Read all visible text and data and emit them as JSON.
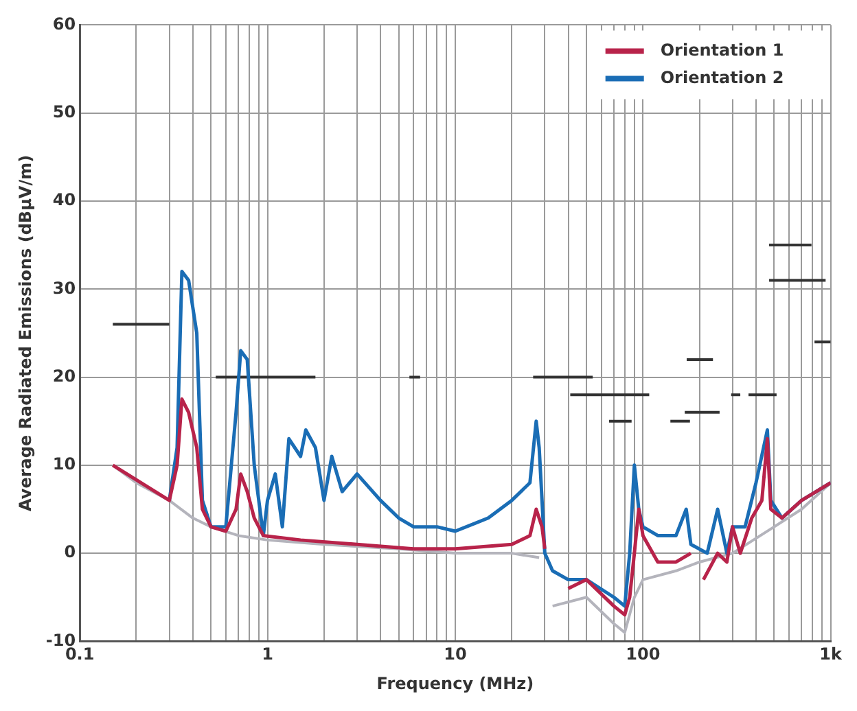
{
  "chart_data": {
    "type": "line",
    "xlabel": "Frequency (MHz)",
    "ylabel": "Average Radiated Emissions (dBµV/m)",
    "log": "x",
    "grid": true,
    "legend": "top right",
    "marker": "none",
    "line_style": "solid",
    "xlim": [
      0.1,
      1000
    ],
    "xticks": [
      0.1,
      {
        "value": 0.2,
        "label": null
      },
      {
        "value": 0.3,
        "label": null
      },
      {
        "value": 0.4,
        "label": null
      },
      {
        "value": 0.5,
        "label": null
      },
      {
        "value": 0.6,
        "label": null
      },
      {
        "value": 0.7,
        "label": null
      },
      {
        "value": 0.8,
        "label": null
      },
      {
        "value": 0.9,
        "label": null
      },
      1,
      {
        "value": 2,
        "label": null
      },
      {
        "value": 3,
        "label": null
      },
      {
        "value": 4,
        "label": null
      },
      {
        "value": 5,
        "label": null
      },
      {
        "value": 6,
        "label": null
      },
      {
        "value": 7,
        "label": null
      },
      {
        "value": 8,
        "label": null
      },
      {
        "value": 9,
        "label": null
      },
      10,
      {
        "value": 20,
        "label": null
      },
      {
        "value": 30,
        "label": null
      },
      {
        "value": 40,
        "label": null
      },
      {
        "value": 50,
        "label": null
      },
      {
        "value": 60,
        "label": null
      },
      {
        "value": 70,
        "label": null
      },
      {
        "value": 80,
        "label": null
      },
      {
        "value": 90,
        "label": null
      },
      100,
      {
        "value": 200,
        "label": null
      },
      {
        "value": 300,
        "label": null
      },
      {
        "value": 400,
        "label": null
      },
      {
        "value": 500,
        "label": null
      },
      {
        "value": 600,
        "label": null
      },
      {
        "value": 700,
        "label": null
      },
      {
        "value": 800,
        "label": null
      },
      {
        "value": 900,
        "label": null
      },
      {
        "value": 1000,
        "label": "1k"
      }
    ],
    "ylim": [
      -10,
      60
    ],
    "yticks": [
      -10,
      0,
      10,
      20,
      30,
      40,
      50,
      60
    ],
    "series": [
      {
        "name": "Orientation 1",
        "color": "#b8234a",
        "x": [
          0.15,
          0.3,
          0.33,
          0.35,
          0.38,
          0.42,
          0.45,
          0.5,
          0.6,
          0.68,
          0.72,
          0.78,
          0.85,
          0.95,
          1.5,
          3,
          6,
          10,
          20,
          25,
          27,
          29,
          30,
          33,
          40,
          50,
          70,
          80,
          85,
          90,
          95,
          100,
          120,
          150,
          180,
          200,
          210,
          250,
          280,
          300,
          330,
          380,
          430,
          460,
          480,
          550,
          700,
          1000
        ],
        "values": [
          10,
          6,
          10,
          17.5,
          16,
          12,
          5,
          3,
          2.5,
          5,
          9,
          7,
          4,
          2,
          1.5,
          1,
          0.5,
          0.5,
          1,
          2,
          5,
          3,
          0.5,
          null,
          -4,
          -3,
          -6,
          -7,
          -5,
          0,
          5,
          2,
          -1,
          -1,
          0,
          null,
          -3,
          0,
          -1,
          3,
          0,
          4,
          6,
          13,
          5,
          4,
          6,
          8
        ]
      },
      {
        "name": "Orientation 2",
        "color": "#1a6db5",
        "x": [
          0.3,
          0.33,
          0.35,
          0.38,
          0.42,
          0.45,
          0.5,
          0.6,
          0.68,
          0.72,
          0.78,
          0.85,
          0.95,
          1,
          1.1,
          1.2,
          1.3,
          1.5,
          1.6,
          1.8,
          2,
          2.2,
          2.5,
          3,
          4,
          5,
          6,
          8,
          10,
          15,
          20,
          25,
          27,
          28,
          29,
          30,
          33,
          40,
          50,
          70,
          80,
          85,
          90,
          95,
          100,
          120,
          150,
          170,
          180,
          220,
          250,
          280,
          300,
          350,
          400,
          460,
          480,
          550,
          700,
          1000
        ],
        "values": [
          6,
          12,
          32,
          31,
          25,
          6,
          3,
          3,
          16,
          23,
          22,
          10,
          2,
          6,
          9,
          3,
          13,
          11,
          14,
          12,
          6,
          11,
          7,
          9,
          6,
          4,
          3,
          3,
          2.5,
          4,
          6,
          8,
          15,
          12,
          6,
          0,
          -2,
          -3,
          -3,
          -5,
          -6,
          0,
          10,
          5,
          3,
          2,
          2,
          5,
          1,
          0,
          5,
          0,
          3,
          3,
          8,
          14,
          6,
          4,
          6,
          8
        ]
      },
      {
        "color": "#b4b4bc",
        "x": [
          0.15,
          0.2,
          0.3,
          0.4,
          0.5,
          0.7,
          1,
          2,
          5,
          10,
          20,
          28,
          30,
          33,
          50,
          70,
          80,
          90,
          100,
          150,
          200,
          300,
          500,
          700,
          1000
        ],
        "values": [
          10,
          8,
          6,
          4,
          3,
          2,
          1.5,
          1,
          0.5,
          0,
          0,
          -0.5,
          null,
          -6,
          -5,
          -8,
          -9,
          -5,
          -3,
          -2,
          -1,
          0,
          3,
          5,
          8
        ]
      },
      {
        "color": "#333333",
        "x": [
          0.15,
          0.3
        ],
        "values": [
          26,
          26
        ]
      },
      {
        "color": "#333333",
        "x": [
          0.53,
          1.8
        ],
        "values": [
          20,
          20
        ]
      },
      {
        "color": "#333333",
        "x": [
          5.7,
          6.5
        ],
        "values": [
          20,
          20
        ]
      },
      {
        "color": "#333333",
        "x": [
          26,
          54
        ],
        "values": [
          20,
          20
        ]
      },
      {
        "color": "#333333",
        "x": [
          41,
          108
        ],
        "values": [
          18,
          18
        ]
      },
      {
        "color": "#333333",
        "x": [
          66,
          87
        ],
        "values": [
          15,
          15
        ]
      },
      {
        "color": "#333333",
        "x": [
          140,
          178
        ],
        "values": [
          15,
          15
        ]
      },
      {
        "color": "#333333",
        "x": [
          167,
          256
        ],
        "values": [
          16,
          16
        ]
      },
      {
        "color": "#333333",
        "x": [
          171,
          236
        ],
        "values": [
          22,
          22
        ]
      },
      {
        "color": "#333333",
        "x": [
          295,
          330
        ],
        "values": [
          18,
          18
        ]
      },
      {
        "color": "#333333",
        "x": [
          365,
          515
        ],
        "values": [
          18,
          18
        ]
      },
      {
        "color": "#333333",
        "x": [
          470,
          790
        ],
        "values": [
          35,
          35
        ]
      },
      {
        "color": "#333333",
        "x": [
          470,
          940
        ],
        "values": [
          31,
          31
        ]
      },
      {
        "color": "#333333",
        "x": [
          820,
          1000
        ],
        "values": [
          24,
          24
        ]
      }
    ]
  }
}
